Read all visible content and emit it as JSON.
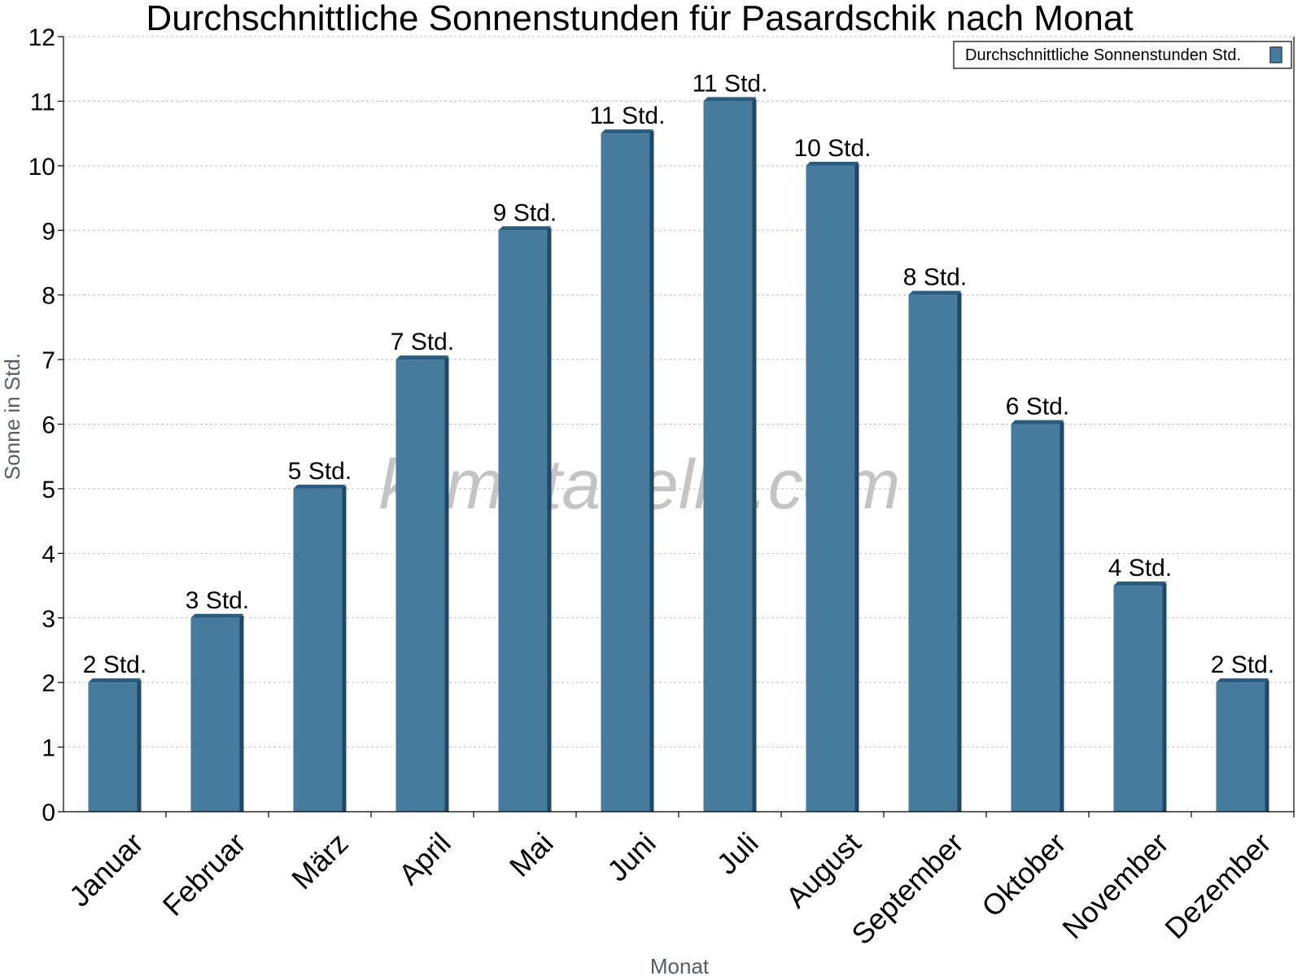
{
  "chart_data": {
    "type": "bar",
    "title": "Durchschnittliche Sonnenstunden für Pasardschik nach Monat",
    "xlabel": "Monat",
    "ylabel": "Sonne in Std.",
    "ylim": [
      0,
      12
    ],
    "y_ticks": [
      0,
      1,
      2,
      3,
      4,
      5,
      6,
      7,
      8,
      9,
      10,
      11,
      12
    ],
    "grid": true,
    "legend_position": "top-right",
    "categories": [
      "Januar",
      "Februar",
      "März",
      "April",
      "Mai",
      "Juni",
      "Juli",
      "August",
      "September",
      "Oktober",
      "November",
      "Dezember"
    ],
    "series": [
      {
        "name": "Durchschnittliche Sonnenstunden Std.",
        "values": [
          2,
          3,
          5,
          7,
          9,
          10.5,
          11,
          10,
          8,
          6,
          3.5,
          2
        ],
        "data_labels": [
          "2 Std.",
          "3 Std.",
          "5 Std.",
          "7 Std.",
          "9 Std.",
          "11 Std.",
          "11 Std.",
          "10 Std.",
          "8 Std.",
          "6 Std.",
          "4 Std.",
          "2 Std."
        ],
        "color": "#467b9e",
        "side_color": "#1d4866",
        "top_color": "#2a5c80"
      }
    ],
    "watermark": "klimatabelle.com"
  }
}
